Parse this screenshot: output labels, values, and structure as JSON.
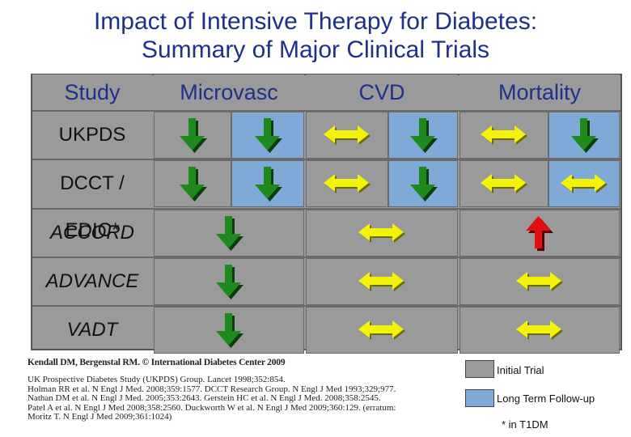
{
  "title": {
    "line1": "Impact of Intensive Therapy for Diabetes:",
    "line2": "Summary of Major Clinical Trials"
  },
  "headers": {
    "study": "Study",
    "microvasc": "Microvasc",
    "cvd": "CVD",
    "mortality": "Mortality"
  },
  "rows": [
    {
      "study": "UKPDS",
      "italic": false,
      "cells": [
        {
          "effect": "decrease",
          "phase": "Initial Trial"
        },
        {
          "effect": "decrease",
          "phase": "Long Term Follow-up"
        },
        {
          "effect": "no-change",
          "phase": "Initial Trial"
        },
        {
          "effect": "decrease",
          "phase": "Long Term Follow-up"
        },
        {
          "effect": "no-change",
          "phase": "Initial Trial"
        },
        {
          "effect": "decrease",
          "phase": "Long Term Follow-up"
        }
      ]
    },
    {
      "study": "DCCT / EDIC*",
      "italic": false,
      "cells": [
        {
          "effect": "decrease",
          "phase": "Initial Trial"
        },
        {
          "effect": "decrease",
          "phase": "Long Term Follow-up"
        },
        {
          "effect": "no-change",
          "phase": "Initial Trial"
        },
        {
          "effect": "decrease",
          "phase": "Long Term Follow-up"
        },
        {
          "effect": "no-change",
          "phase": "Initial Trial"
        },
        {
          "effect": "no-change",
          "phase": "Long Term Follow-up"
        }
      ]
    },
    {
      "study": "ACCORD",
      "italic": true,
      "cells": [
        {
          "effect": "decrease",
          "phase": "Initial Trial"
        },
        {
          "effect": "no-change",
          "phase": "Initial Trial"
        },
        {
          "effect": "increase",
          "phase": "Initial Trial"
        }
      ]
    },
    {
      "study": "ADVANCE",
      "italic": true,
      "cells": [
        {
          "effect": "decrease",
          "phase": "Initial Trial"
        },
        {
          "effect": "no-change",
          "phase": "Initial Trial"
        },
        {
          "effect": "no-change",
          "phase": "Initial Trial"
        }
      ]
    },
    {
      "study": "VADT",
      "italic": true,
      "cells": [
        {
          "effect": "decrease",
          "phase": "Initial Trial"
        },
        {
          "effect": "no-change",
          "phase": "Initial Trial"
        },
        {
          "effect": "no-change",
          "phase": "Initial Trial"
        }
      ]
    }
  ],
  "icons": {
    "decrease": "down-arrow-icon",
    "no-change": "left-right-arrow-icon",
    "increase": "up-arrow-icon"
  },
  "colors": {
    "title": "#1f2f8c",
    "decrease_arrow": "#1e8a1e",
    "no_change_arrow": "#f2f20a",
    "increase_arrow": "#e01010",
    "initial_trial_fill": "#9a9a9a",
    "long_term_fill": "#7fa9d6"
  },
  "credit": "Kendall DM, Bergenstal RM. © International Diabetes Center 2009",
  "references": "UK Prospective Diabetes Study (UKPDS) Group. Lancet 1998;352:854.\nHolman RR et al. N Engl J Med. 2008;359:1577. DCCT Research Group. N Engl J Med 1993;329;977.\nNathan DM et al. N Engl J Med. 2005;353:2643. Gerstein HC et al. N Engl J Med. 2008;358:2545.\nPatel A et al. N Engl J Med 2008;358:2560. Duckworth W et al. N Engl J Med 2009;360:129. (erratum:\nMoritz T. N Engl J Med 2009;361:1024)",
  "legend": {
    "initial": "Initial Trial",
    "followup": "Long Term Follow-up",
    "footnote": "* in T1DM"
  }
}
